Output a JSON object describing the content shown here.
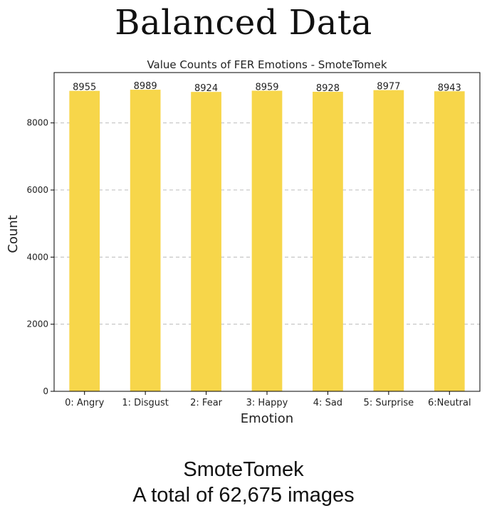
{
  "slide": {
    "title": "Balanced Data",
    "caption_line1": "SmoteTomek",
    "caption_line2": "A total of 62,675 images"
  },
  "chart_data": {
    "type": "bar",
    "title": "Value Counts of FER Emotions - SmoteTomek",
    "xlabel": "Emotion",
    "ylabel": "Count",
    "categories": [
      "0: Angry",
      "1: Disgust",
      "2: Fear",
      "3: Happy",
      "4: Sad",
      "5: Surprise",
      "6:Neutral"
    ],
    "values": [
      8955,
      8989,
      8924,
      8959,
      8928,
      8977,
      8943
    ],
    "ylim": [
      0,
      9500
    ],
    "yticks": [
      0,
      2000,
      4000,
      6000,
      8000
    ],
    "grid": "horizontal dashed",
    "bar_color": "#f7d64a",
    "data_labels": true
  }
}
